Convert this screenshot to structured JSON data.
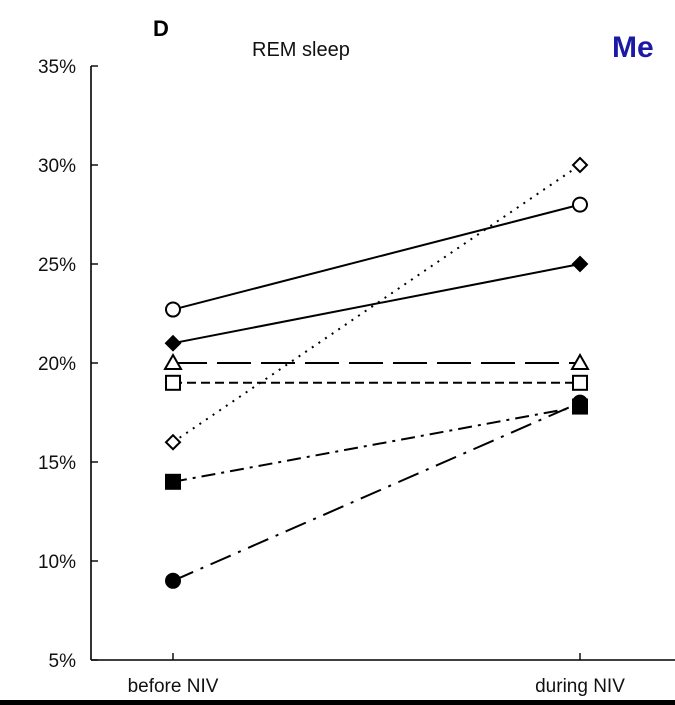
{
  "chart_data": {
    "type": "line",
    "panel_label": "D",
    "title": "REM sleep",
    "overflow_text": "Me",
    "x": [
      "before NIV",
      "during NIV"
    ],
    "y_ticks": [
      "35%",
      "30%",
      "25%",
      "20%",
      "15%",
      "10%",
      "5%"
    ],
    "ylim": [
      5,
      35
    ],
    "grid": false,
    "series": [
      {
        "values": [
          22.7,
          28
        ],
        "marker": "circle-open",
        "line": "solid"
      },
      {
        "values": [
          21,
          25
        ],
        "marker": "diamond-filled",
        "line": "solid"
      },
      {
        "values": [
          20,
          20
        ],
        "marker": "triangle-open",
        "line": "long-dash"
      },
      {
        "values": [
          19,
          19
        ],
        "marker": "square-open",
        "line": "short-dash"
      },
      {
        "values": [
          16,
          30
        ],
        "marker": "diamond-open",
        "line": "dotted"
      },
      {
        "values": [
          14,
          17.8
        ],
        "marker": "square-filled",
        "line": "dash-dot"
      },
      {
        "values": [
          9,
          18
        ],
        "marker": "circle-filled",
        "line": "long-dash-dot"
      }
    ],
    "colors": {
      "axis": "#000000",
      "overflow_text": "#1a1aa6"
    }
  }
}
